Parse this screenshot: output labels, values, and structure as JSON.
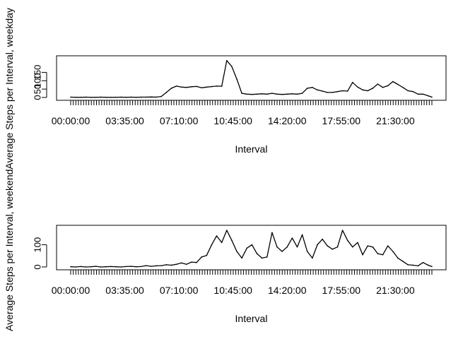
{
  "chart_data": [
    {
      "type": "line",
      "xlabel": "Interval",
      "ylabel": "Average Steps per Interval, weekday",
      "y_ticks": [
        0,
        50,
        100,
        150
      ],
      "y_tick_labels": [
        "0",
        "50",
        "100",
        "150"
      ],
      "x_tick_labels": [
        "00:00:00",
        "03:35:00",
        "07:10:00",
        "10:45:00",
        "14:20:00",
        "17:55:00",
        "21:30:00"
      ],
      "ylim": [
        0,
        232
      ],
      "x_unit": "minutes since midnight",
      "xlim": [
        0,
        1435
      ],
      "x_tick_values": [
        0,
        215,
        430,
        645,
        860,
        1075,
        1290
      ],
      "x": [
        0,
        20,
        40,
        60,
        80,
        100,
        120,
        140,
        160,
        180,
        200,
        220,
        240,
        260,
        280,
        300,
        320,
        340,
        360,
        380,
        400,
        420,
        440,
        460,
        480,
        500,
        520,
        540,
        560,
        580,
        600,
        620,
        640,
        660,
        680,
        700,
        720,
        740,
        760,
        780,
        800,
        820,
        840,
        860,
        880,
        900,
        920,
        940,
        960,
        980,
        1000,
        1020,
        1040,
        1060,
        1080,
        1100,
        1120,
        1140,
        1160,
        1180,
        1200,
        1220,
        1240,
        1260,
        1280,
        1300,
        1320,
        1340,
        1360,
        1380,
        1400,
        1420,
        1435
      ],
      "y": [
        2,
        1,
        1,
        2,
        1,
        1,
        2,
        1,
        1,
        1,
        2,
        1,
        2,
        1,
        2,
        2,
        3,
        2,
        6,
        30,
        55,
        68,
        62,
        60,
        64,
        66,
        58,
        62,
        65,
        68,
        67,
        220,
        185,
        110,
        25,
        20,
        18,
        20,
        22,
        20,
        25,
        20,
        18,
        20,
        22,
        20,
        25,
        55,
        60,
        45,
        38,
        30,
        30,
        35,
        40,
        38,
        90,
        62,
        45,
        40,
        55,
        80,
        60,
        70,
        95,
        78,
        60,
        40,
        35,
        20,
        20,
        10,
        2
      ]
    },
    {
      "type": "line",
      "xlabel": "Interval",
      "ylabel": "Average Steps per Interval, weekend",
      "y_ticks": [
        0,
        100
      ],
      "y_tick_labels": [
        "0",
        "100"
      ],
      "x_tick_labels": [
        "00:00:00",
        "03:35:00",
        "07:10:00",
        "10:45:00",
        "14:20:00",
        "17:55:00",
        "21:30:00"
      ],
      "ylim": [
        0,
        175
      ],
      "x_unit": "minutes since midnight",
      "xlim": [
        0,
        1435
      ],
      "x_tick_values": [
        0,
        215,
        430,
        645,
        860,
        1075,
        1290
      ],
      "x": [
        0,
        20,
        40,
        60,
        80,
        100,
        120,
        140,
        160,
        180,
        200,
        220,
        240,
        260,
        280,
        300,
        320,
        340,
        360,
        380,
        400,
        420,
        440,
        460,
        480,
        500,
        520,
        540,
        560,
        580,
        600,
        620,
        640,
        660,
        680,
        700,
        720,
        740,
        760,
        780,
        800,
        820,
        840,
        860,
        880,
        900,
        920,
        940,
        960,
        980,
        1000,
        1020,
        1040,
        1060,
        1080,
        1100,
        1120,
        1140,
        1160,
        1180,
        1200,
        1220,
        1240,
        1260,
        1280,
        1300,
        1320,
        1340,
        1360,
        1380,
        1400,
        1420,
        1435
      ],
      "y": [
        1,
        0,
        2,
        0,
        1,
        3,
        0,
        1,
        2,
        1,
        0,
        2,
        3,
        1,
        2,
        6,
        3,
        5,
        6,
        10,
        8,
        12,
        18,
        12,
        22,
        20,
        45,
        52,
        100,
        140,
        110,
        165,
        120,
        70,
        40,
        85,
        100,
        60,
        40,
        45,
        155,
        90,
        70,
        90,
        130,
        90,
        145,
        70,
        40,
        100,
        125,
        95,
        80,
        90,
        165,
        120,
        90,
        110,
        55,
        95,
        90,
        60,
        55,
        95,
        70,
        40,
        25,
        10,
        8,
        5,
        20,
        8,
        2
      ]
    }
  ]
}
